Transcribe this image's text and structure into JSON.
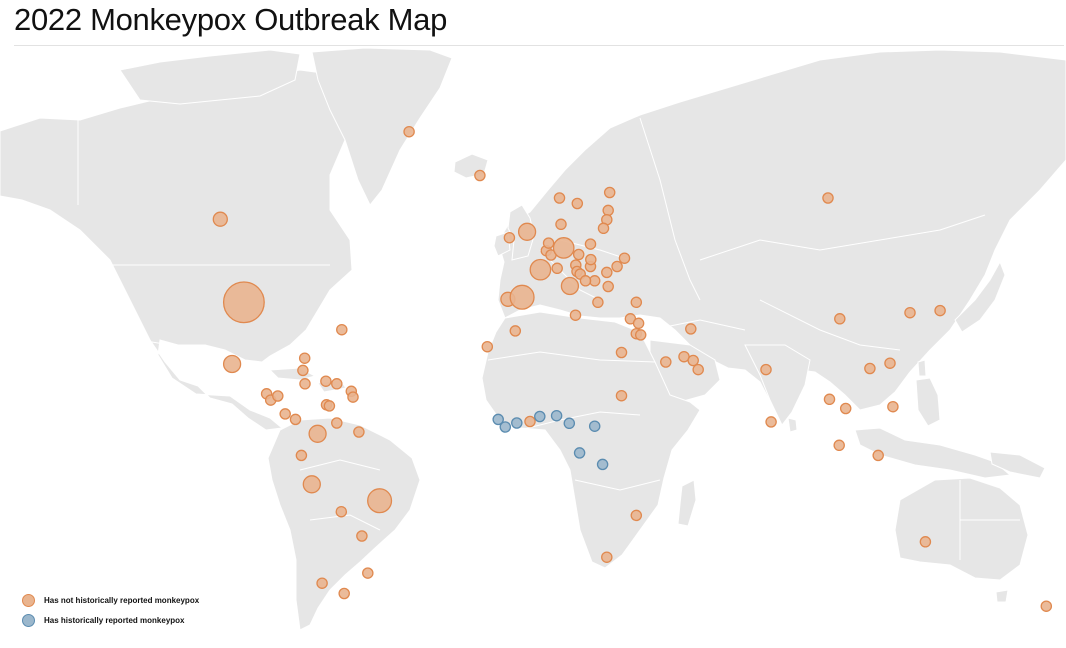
{
  "title": "2022 Monkeypox Outbreak Map",
  "colors": {
    "land": "#e6e6e6",
    "border": "#ffffff",
    "not_reported_fill": "#e9b48f",
    "not_reported_stroke": "#e0894f",
    "reported_fill": "#9bb7cc",
    "reported_stroke": "#5b8cb0"
  },
  "legend": [
    {
      "key": "not_reported",
      "label": "Has not historically reported monkeypox"
    },
    {
      "key": "reported",
      "label": "Has historically reported monkeypox"
    }
  ],
  "markers": [
    {
      "place": "United States",
      "lon": -98,
      "lat": 39,
      "size": 9,
      "group": "not_reported"
    },
    {
      "place": "Canada",
      "lon": -106,
      "lat": 57,
      "size": 1,
      "group": "not_reported"
    },
    {
      "place": "Greenland",
      "lon": -42,
      "lat": 72,
      "size": 0.5,
      "group": "not_reported"
    },
    {
      "place": "Iceland",
      "lon": -18,
      "lat": 65,
      "size": 0.5,
      "group": "not_reported"
    },
    {
      "place": "Mexico",
      "lon": -102,
      "lat": 23.5,
      "size": 1.5,
      "group": "not_reported"
    },
    {
      "place": "Bermuda",
      "lon": -64.8,
      "lat": 32.3,
      "size": 0.5,
      "group": "not_reported"
    },
    {
      "place": "Bahamas",
      "lon": -77.4,
      "lat": 25.0,
      "size": 0.5,
      "group": "not_reported"
    },
    {
      "place": "Cuba",
      "lon": -78,
      "lat": 21.8,
      "size": 0.5,
      "group": "not_reported"
    },
    {
      "place": "Jamaica",
      "lon": -77.3,
      "lat": 18.2,
      "size": 0.5,
      "group": "not_reported"
    },
    {
      "place": "Dominican Republic",
      "lon": -70.2,
      "lat": 18.9,
      "size": 0.5,
      "group": "not_reported"
    },
    {
      "place": "Puerto Rico",
      "lon": -66.5,
      "lat": 18.2,
      "size": 0.5,
      "group": "not_reported"
    },
    {
      "place": "Guadeloupe",
      "lon": -61.6,
      "lat": 16.2,
      "size": 0.5,
      "group": "not_reported"
    },
    {
      "place": "Martinique",
      "lon": -61,
      "lat": 14.6,
      "size": 0.5,
      "group": "not_reported"
    },
    {
      "place": "Guatemala",
      "lon": -90.3,
      "lat": 15.5,
      "size": 0.5,
      "group": "not_reported"
    },
    {
      "place": "El Salvador",
      "lon": -88.9,
      "lat": 13.8,
      "size": 0.5,
      "group": "not_reported"
    },
    {
      "place": "Honduras",
      "lon": -86.5,
      "lat": 14.9,
      "size": 0.5,
      "group": "not_reported"
    },
    {
      "place": "Costa Rica",
      "lon": -84,
      "lat": 10,
      "size": 0.5,
      "group": "not_reported"
    },
    {
      "place": "Panama",
      "lon": -80.5,
      "lat": 8.5,
      "size": 0.5,
      "group": "not_reported"
    },
    {
      "place": "Aruba",
      "lon": -70,
      "lat": 12.5,
      "size": 0.5,
      "group": "not_reported"
    },
    {
      "place": "Curacao",
      "lon": -69,
      "lat": 12.2,
      "size": 0.5,
      "group": "not_reported"
    },
    {
      "place": "Colombia",
      "lon": -73,
      "lat": 4.5,
      "size": 1.5,
      "group": "not_reported"
    },
    {
      "place": "Venezuela",
      "lon": -66.5,
      "lat": 7.5,
      "size": 0.5,
      "group": "not_reported"
    },
    {
      "place": "Guyana",
      "lon": -59,
      "lat": 5,
      "size": 0.5,
      "group": "not_reported"
    },
    {
      "place": "Ecuador",
      "lon": -78.5,
      "lat": -1.5,
      "size": 0.5,
      "group": "not_reported"
    },
    {
      "place": "Peru",
      "lon": -75,
      "lat": -9.5,
      "size": 1.5,
      "group": "not_reported"
    },
    {
      "place": "Bolivia",
      "lon": -65,
      "lat": -17,
      "size": 0.5,
      "group": "not_reported"
    },
    {
      "place": "Brazil",
      "lon": -52,
      "lat": -14,
      "size": 3,
      "group": "not_reported"
    },
    {
      "place": "Chile",
      "lon": -71.5,
      "lat": -35.5,
      "size": 0.5,
      "group": "not_reported"
    },
    {
      "place": "Paraguay",
      "lon": -58,
      "lat": -23.5,
      "size": 0.5,
      "group": "not_reported"
    },
    {
      "place": "Argentina",
      "lon": -64,
      "lat": -38,
      "size": 0.5,
      "group": "not_reported"
    },
    {
      "place": "Uruguay",
      "lon": -56,
      "lat": -33,
      "size": 0.5,
      "group": "not_reported"
    },
    {
      "place": "Ireland",
      "lon": -8,
      "lat": 53.3,
      "size": 0.5,
      "group": "not_reported"
    },
    {
      "place": "United Kingdom",
      "lon": -2,
      "lat": 54.5,
      "size": 1.5,
      "group": "not_reported"
    },
    {
      "place": "Portugal",
      "lon": -8.5,
      "lat": 39.7,
      "size": 1,
      "group": "not_reported"
    },
    {
      "place": "Spain",
      "lon": -3.7,
      "lat": 40.2,
      "size": 3,
      "group": "not_reported"
    },
    {
      "place": "Canary Islands",
      "lon": -15.5,
      "lat": 28,
      "size": 0.5,
      "group": "not_reported"
    },
    {
      "place": "Morocco",
      "lon": -6,
      "lat": 32,
      "size": 0.5,
      "group": "not_reported"
    },
    {
      "place": "France",
      "lon": 2.5,
      "lat": 46.5,
      "size": 2.2,
      "group": "not_reported"
    },
    {
      "place": "Belgium",
      "lon": 4.5,
      "lat": 50.6,
      "size": 0.5,
      "group": "not_reported"
    },
    {
      "place": "Netherlands",
      "lon": 5.3,
      "lat": 52.2,
      "size": 0.5,
      "group": "not_reported"
    },
    {
      "place": "Luxembourg",
      "lon": 6.1,
      "lat": 49.7,
      "size": 0.5,
      "group": "not_reported"
    },
    {
      "place": "Germany",
      "lon": 10.4,
      "lat": 51.2,
      "size": 2.2,
      "group": "not_reported"
    },
    {
      "place": "Switzerland",
      "lon": 8.2,
      "lat": 46.8,
      "size": 0.5,
      "group": "not_reported"
    },
    {
      "place": "Italy",
      "lon": 12.5,
      "lat": 42.8,
      "size": 1.5,
      "group": "not_reported"
    },
    {
      "place": "Austria",
      "lon": 14.5,
      "lat": 47.5,
      "size": 0.5,
      "group": "not_reported"
    },
    {
      "place": "Czechia",
      "lon": 15.5,
      "lat": 49.8,
      "size": 0.5,
      "group": "not_reported"
    },
    {
      "place": "Slovenia",
      "lon": 14.9,
      "lat": 46.1,
      "size": 0.5,
      "group": "not_reported"
    },
    {
      "place": "Croatia",
      "lon": 16,
      "lat": 45.5,
      "size": 0.5,
      "group": "not_reported"
    },
    {
      "place": "Hungary",
      "lon": 19.5,
      "lat": 47.2,
      "size": 0.5,
      "group": "not_reported"
    },
    {
      "place": "Serbia",
      "lon": 20.9,
      "lat": 44,
      "size": 0.5,
      "group": "not_reported"
    },
    {
      "place": "Bosnia",
      "lon": 17.8,
      "lat": 44,
      "size": 0.5,
      "group": "not_reported"
    },
    {
      "place": "Denmark",
      "lon": 9.5,
      "lat": 56,
      "size": 0.5,
      "group": "not_reported"
    },
    {
      "place": "Norway",
      "lon": 9,
      "lat": 61,
      "size": 0.5,
      "group": "not_reported"
    },
    {
      "place": "Sweden",
      "lon": 15,
      "lat": 60,
      "size": 0.5,
      "group": "not_reported"
    },
    {
      "place": "Finland",
      "lon": 26,
      "lat": 62,
      "size": 0.5,
      "group": "not_reported"
    },
    {
      "place": "Estonia",
      "lon": 25.5,
      "lat": 58.7,
      "size": 0.5,
      "group": "not_reported"
    },
    {
      "place": "Latvia",
      "lon": 25,
      "lat": 56.9,
      "size": 0.5,
      "group": "not_reported"
    },
    {
      "place": "Lithuania",
      "lon": 23.9,
      "lat": 55.2,
      "size": 0.5,
      "group": "not_reported"
    },
    {
      "place": "Poland",
      "lon": 19.5,
      "lat": 52,
      "size": 0.5,
      "group": "not_reported"
    },
    {
      "place": "Slovakia",
      "lon": 19.6,
      "lat": 48.7,
      "size": 0.5,
      "group": "not_reported"
    },
    {
      "place": "Romania",
      "lon": 25,
      "lat": 45.9,
      "size": 0.5,
      "group": "not_reported"
    },
    {
      "place": "Bulgaria",
      "lon": 25.5,
      "lat": 42.7,
      "size": 0.5,
      "group": "not_reported"
    },
    {
      "place": "Moldova",
      "lon": 28.5,
      "lat": 47.2,
      "size": 0.5,
      "group": "not_reported"
    },
    {
      "place": "Ukraine",
      "lon": 31,
      "lat": 49,
      "size": 0.5,
      "group": "not_reported"
    },
    {
      "place": "Greece",
      "lon": 22,
      "lat": 39,
      "size": 0.5,
      "group": "not_reported"
    },
    {
      "place": "Turkey",
      "lon": 35,
      "lat": 39,
      "size": 0.5,
      "group": "not_reported"
    },
    {
      "place": "Malta",
      "lon": 14.4,
      "lat": 35.9,
      "size": 0.5,
      "group": "not_reported"
    },
    {
      "place": "Cyprus",
      "lon": 33,
      "lat": 35,
      "size": 0.5,
      "group": "not_reported"
    },
    {
      "place": "Lebanon",
      "lon": 35.8,
      "lat": 33.9,
      "size": 0.5,
      "group": "not_reported"
    },
    {
      "place": "Israel",
      "lon": 35,
      "lat": 31.3,
      "size": 0.5,
      "group": "not_reported"
    },
    {
      "place": "Jordan",
      "lon": 36.5,
      "lat": 31,
      "size": 0.5,
      "group": "not_reported"
    },
    {
      "place": "Egypt",
      "lon": 30,
      "lat": 26.5,
      "size": 0.5,
      "group": "not_reported"
    },
    {
      "place": "Sudan",
      "lon": 30,
      "lat": 15,
      "size": 0.5,
      "group": "not_reported"
    },
    {
      "place": "Iran",
      "lon": 53.5,
      "lat": 32.5,
      "size": 0.5,
      "group": "not_reported"
    },
    {
      "place": "Saudi Arabia",
      "lon": 45,
      "lat": 24,
      "size": 0.5,
      "group": "not_reported"
    },
    {
      "place": "Qatar",
      "lon": 51.2,
      "lat": 25.4,
      "size": 0.5,
      "group": "not_reported"
    },
    {
      "place": "UAE",
      "lon": 54.3,
      "lat": 24.4,
      "size": 0.5,
      "group": "not_reported"
    },
    {
      "place": "Oman",
      "lon": 56,
      "lat": 22,
      "size": 0.5,
      "group": "not_reported"
    },
    {
      "place": "India",
      "lon": 79,
      "lat": 22,
      "size": 0.5,
      "group": "not_reported"
    },
    {
      "place": "Sri Lanka",
      "lon": 80.7,
      "lat": 7.8,
      "size": 0.5,
      "group": "not_reported"
    },
    {
      "place": "Thailand",
      "lon": 100.5,
      "lat": 14,
      "size": 0.5,
      "group": "not_reported"
    },
    {
      "place": "Vietnam",
      "lon": 106,
      "lat": 11.5,
      "size": 0.5,
      "group": "not_reported"
    },
    {
      "place": "Singapore",
      "lon": 103.8,
      "lat": 1.3,
      "size": 0.5,
      "group": "not_reported"
    },
    {
      "place": "Indonesia",
      "lon": 117,
      "lat": -1.5,
      "size": 0.5,
      "group": "not_reported"
    },
    {
      "place": "Philippines",
      "lon": 122,
      "lat": 12,
      "size": 0.5,
      "group": "not_reported"
    },
    {
      "place": "Taiwan",
      "lon": 121,
      "lat": 23.7,
      "size": 0.5,
      "group": "not_reported"
    },
    {
      "place": "Hong Kong",
      "lon": 114.2,
      "lat": 22.3,
      "size": 0.5,
      "group": "not_reported"
    },
    {
      "place": "China",
      "lon": 104,
      "lat": 35,
      "size": 0.5,
      "group": "not_reported"
    },
    {
      "place": "South Korea",
      "lon": 127.8,
      "lat": 36.5,
      "size": 0.5,
      "group": "not_reported"
    },
    {
      "place": "Japan",
      "lon": 138,
      "lat": 37,
      "size": 0.5,
      "group": "not_reported"
    },
    {
      "place": "Russia",
      "lon": 100,
      "lat": 61,
      "size": 0.5,
      "group": "not_reported"
    },
    {
      "place": "Australia",
      "lon": 133,
      "lat": -25,
      "size": 0.5,
      "group": "not_reported"
    },
    {
      "place": "New Zealand",
      "lon": 174,
      "lat": -41,
      "size": 0.5,
      "group": "not_reported"
    },
    {
      "place": "Mozambique",
      "lon": 35,
      "lat": -18,
      "size": 0.5,
      "group": "not_reported"
    },
    {
      "place": "South Africa",
      "lon": 25,
      "lat": -29,
      "size": 0.5,
      "group": "not_reported"
    },
    {
      "place": "Ghana",
      "lon": -1,
      "lat": 7.9,
      "size": 0.5,
      "group": "not_reported"
    },
    {
      "place": "Sierra Leone",
      "lon": -11.8,
      "lat": 8.5,
      "size": 0.5,
      "group": "reported"
    },
    {
      "place": "Liberia",
      "lon": -9.4,
      "lat": 6.4,
      "size": 0.5,
      "group": "reported"
    },
    {
      "place": "Cote d'Ivoire",
      "lon": -5.5,
      "lat": 7.5,
      "size": 0.5,
      "group": "reported"
    },
    {
      "place": "Nigeria",
      "lon": 8,
      "lat": 9.5,
      "size": 0.5,
      "group": "reported"
    },
    {
      "place": "Benin",
      "lon": 2.3,
      "lat": 9.3,
      "size": 0.5,
      "group": "reported"
    },
    {
      "place": "Cameroon",
      "lon": 12.3,
      "lat": 7.4,
      "size": 0.5,
      "group": "reported"
    },
    {
      "place": "Central African Republic",
      "lon": 20.9,
      "lat": 6.6,
      "size": 0.5,
      "group": "reported"
    },
    {
      "place": "Republic of the Congo",
      "lon": 15.8,
      "lat": -0.8,
      "size": 0.5,
      "group": "reported"
    },
    {
      "place": "DR Congo",
      "lon": 23.6,
      "lat": -4,
      "size": 0.5,
      "group": "reported"
    }
  ]
}
